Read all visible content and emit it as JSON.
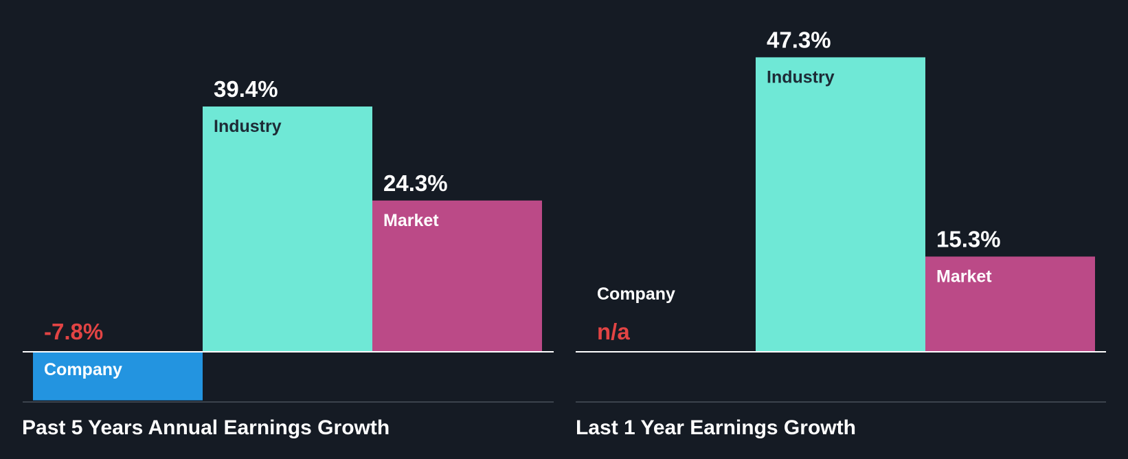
{
  "colors": {
    "background": "#151b24",
    "company": "#2394e0",
    "industry": "#6fe8d6",
    "market": "#bb4a87",
    "negative_value": "#e24444",
    "value_text": "#ffffff",
    "label_on_light": "#1d2b36",
    "label_on_dark": "#ffffff",
    "axis_line": "#ffffff",
    "bottom_rule": "#3c434d"
  },
  "chart_data": [
    {
      "type": "bar",
      "title": "Past 5 Years Annual Earnings Growth",
      "categories": [
        "Company",
        "Industry",
        "Market"
      ],
      "values": [
        -7.8,
        39.4,
        24.3
      ],
      "value_labels": [
        "-7.8%",
        "39.4%",
        "24.3%"
      ],
      "unit": "%",
      "ylim": [
        -7.8,
        39.4
      ],
      "grid": false,
      "legend": "none"
    },
    {
      "type": "bar",
      "title": "Last 1 Year Earnings Growth",
      "categories": [
        "Company",
        "Industry",
        "Market"
      ],
      "values": [
        null,
        47.3,
        15.3
      ],
      "value_labels": [
        "n/a",
        "47.3%",
        "15.3%"
      ],
      "unit": "%",
      "ylim": [
        0,
        47.3
      ],
      "grid": false,
      "legend": "none"
    }
  ]
}
